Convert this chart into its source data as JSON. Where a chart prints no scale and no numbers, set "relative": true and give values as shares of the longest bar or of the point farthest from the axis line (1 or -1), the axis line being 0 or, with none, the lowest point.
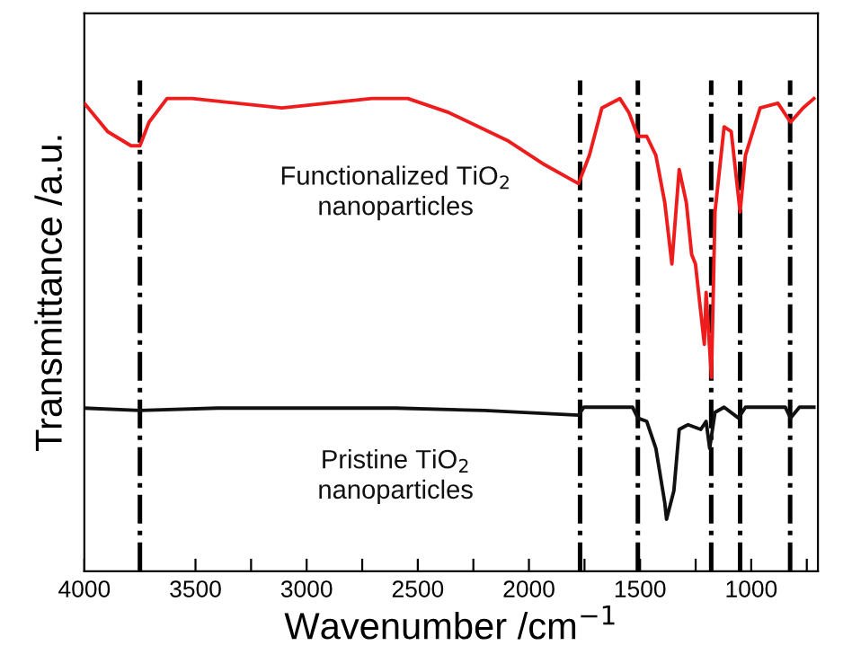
{
  "chart_data": {
    "type": "line",
    "relative": true,
    "xlabel": "Wavenumber /cm$^{−1}$",
    "ylabel": "Transmittance /a.u.",
    "xlim": [
      4000,
      700
    ],
    "xticks": [
      4000,
      {
        "value": 3750,
        "label": null
      },
      3500,
      {
        "value": 3250,
        "label": null
      },
      3000,
      {
        "value": 2750,
        "label": null
      },
      2500,
      {
        "value": 2250,
        "label": null
      },
      2000,
      {
        "value": 1750,
        "label": null
      },
      1500,
      {
        "value": 1250,
        "label": null
      },
      1000,
      {
        "value": 750,
        "label": null
      }
    ],
    "grid": false,
    "legend": false,
    "marker": "none",
    "line_style": "solid",
    "series": [
      {
        "name": "Functionalized TiO$_{2}$\nnanoparticles",
        "color": "#ee1c1c",
        "x": [
          4000,
          3895,
          3790,
          3750,
          3709,
          3628,
          3515,
          3111,
          2707,
          2545,
          2359,
          2092,
          1930,
          1777,
          1728,
          1672,
          1591,
          1550,
          1510,
          1470,
          1429,
          1389,
          1357,
          1324,
          1292,
          1268,
          1251,
          1211,
          1203,
          1179,
          1163,
          1122,
          1090,
          1050,
          1026,
          960,
          880,
          823,
          767,
          718
        ],
        "values": [
          0.99,
          0.93,
          0.9,
          0.9,
          0.95,
          1.0,
          1.0,
          0.98,
          1.0,
          1.0,
          0.97,
          0.91,
          0.86,
          0.82,
          0.88,
          0.98,
          1.0,
          0.97,
          0.92,
          0.92,
          0.88,
          0.78,
          0.65,
          0.85,
          0.78,
          0.67,
          0.65,
          0.48,
          0.59,
          0.41,
          0.76,
          0.94,
          0.93,
          0.76,
          0.88,
          0.98,
          0.99,
          0.95,
          0.98,
          1.0
        ]
      },
      {
        "name": "Pristine TiO$_{2}$\nnanoparticles",
        "color": "#111111",
        "x": [
          4000,
          3750,
          3400,
          3000,
          2600,
          2200,
          1777,
          1753,
          1534,
          1510,
          1470,
          1429,
          1389,
          1381,
          1348,
          1324,
          1284,
          1227,
          1203,
          1187,
          1163,
          1122,
          1057,
          1026,
          847,
          823,
          783,
          718
        ],
        "values": [
          0.345,
          0.34,
          0.345,
          0.345,
          0.345,
          0.34,
          0.33,
          0.347,
          0.347,
          0.324,
          0.317,
          0.26,
          0.145,
          0.11,
          0.17,
          0.3,
          0.31,
          0.3,
          0.317,
          0.26,
          0.336,
          0.347,
          0.324,
          0.347,
          0.347,
          0.324,
          0.347,
          0.347
        ]
      }
    ],
    "ref_lines": [
      {
        "axis": "x",
        "value": 3750,
        "color": "#000000",
        "line_style": "dashdot"
      },
      {
        "axis": "x",
        "value": 1770,
        "color": "#000000",
        "line_style": "dashdot"
      },
      {
        "axis": "x",
        "value": 1510,
        "color": "#000000",
        "line_style": "dashdot"
      },
      {
        "axis": "x",
        "value": 1180,
        "color": "#000000",
        "line_style": "dashdot"
      },
      {
        "axis": "x",
        "value": 1050,
        "color": "#000000",
        "line_style": "dashdot"
      },
      {
        "axis": "x",
        "value": 825,
        "color": "#000000",
        "line_style": "dashdot"
      }
    ]
  }
}
